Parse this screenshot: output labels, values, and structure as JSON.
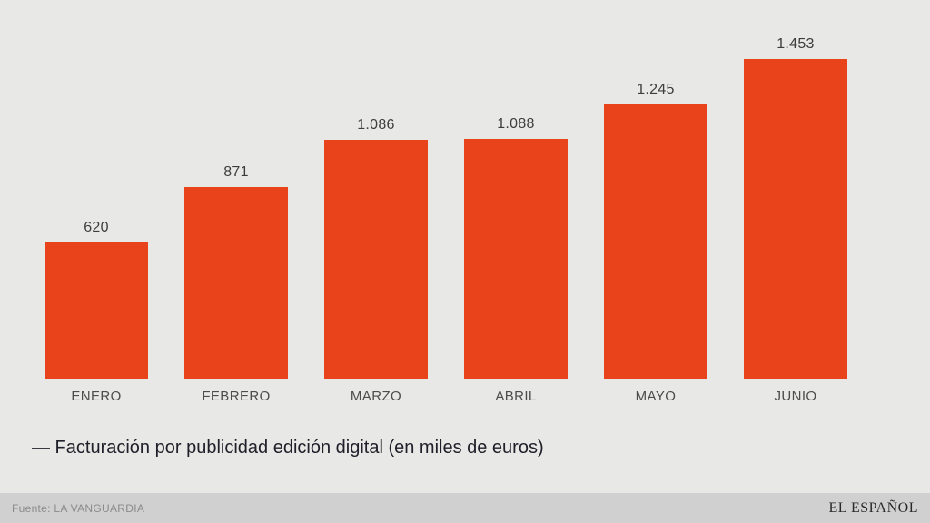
{
  "colors": {
    "background": "#e8e8e6",
    "bar": "#e8431a",
    "value_label": "#3d3d3d",
    "month_label": "#4c4c4c",
    "legend_text": "#20202a",
    "footer_background": "#d0d0d0",
    "footer_text": "#8b8b8b",
    "logo_text": "#2a2a2a"
  },
  "chart_data": {
    "type": "bar",
    "categories": [
      "ENERO",
      "FEBRERO",
      "MARZO",
      "ABRIL",
      "MAYO",
      "JUNIO"
    ],
    "values": [
      620,
      871,
      1086,
      1088,
      1245,
      1453
    ],
    "value_labels": [
      "620",
      "871",
      "1.086",
      "1.088",
      "1.245",
      "1.453"
    ],
    "title": "",
    "xlabel": "",
    "ylabel": "",
    "ylim": [
      0,
      1453
    ],
    "grid": false,
    "legend": "— Facturación por publicidad edición digital (en miles de euros)",
    "legend_position": "bottom-left",
    "bar_color": "#e8431a"
  },
  "footer": {
    "source": "Fuente: LA VANGUARDIA",
    "logo": "EL ESPAÑOL"
  }
}
